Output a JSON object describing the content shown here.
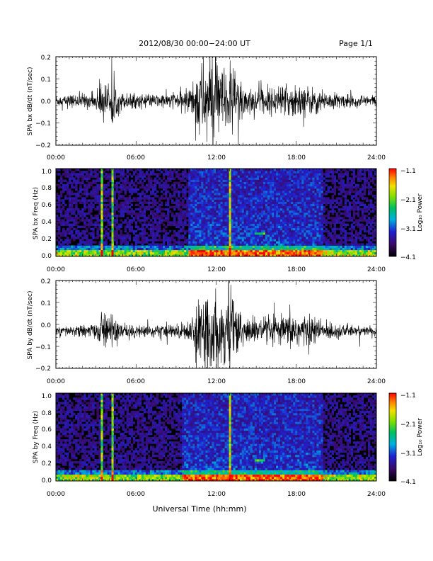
{
  "header": {
    "title": "2012/08/30  00:00−24:00 UT",
    "page": "Page 1/1"
  },
  "xlabel": "Universal Time (hh:mm)",
  "x_ticks": [
    "00:00",
    "06:00",
    "12:00",
    "18:00",
    "24:00"
  ],
  "colors": {
    "trace": "#000000",
    "spectrogram_background": "#000000",
    "colormap": [
      "#000000",
      "#3a0a6a",
      "#2020d0",
      "#00b0e0",
      "#00c060",
      "#80e000",
      "#f0e000",
      "#ff8000",
      "#ff0000"
    ]
  },
  "chart_data": [
    {
      "type": "line",
      "ylabel": "SPA bx dB/dt (nT/sec)",
      "xlim": [
        0,
        24
      ],
      "ylim": [
        -0.2,
        0.2
      ],
      "y_ticks": [
        "0.2",
        "0.1",
        "0.0",
        "−0.1",
        "−0.2"
      ],
      "x": [
        0,
        1,
        2,
        3,
        3.4,
        4,
        4.2,
        5,
        6,
        7,
        8,
        9,
        10,
        10.8,
        11,
        12,
        12.5,
        13,
        14,
        15,
        16,
        17,
        18,
        19,
        20,
        21,
        22,
        23,
        24
      ],
      "offset": [
        0.0,
        0.0,
        0.0,
        0.0,
        0.0,
        0.0,
        0.0,
        0.0,
        0.0,
        0.0,
        0.0,
        0.0,
        0.0,
        0.0,
        0.0,
        0.0,
        0.0,
        0.0,
        0.0,
        0.0,
        0.0,
        0.0,
        0.0,
        0.0,
        0.0,
        0.0,
        0.0,
        0.0,
        0.0
      ],
      "amplitude": [
        0.03,
        0.03,
        0.035,
        0.04,
        0.12,
        0.05,
        0.1,
        0.04,
        0.035,
        0.03,
        0.035,
        0.04,
        0.06,
        0.2,
        0.2,
        0.2,
        0.16,
        0.2,
        0.1,
        0.06,
        0.06,
        0.07,
        0.09,
        0.07,
        0.05,
        0.04,
        0.03,
        0.03,
        0.03
      ]
    },
    {
      "type": "heatmap",
      "ylabel": "SPA bx Freq (Hz)",
      "xlim": [
        0,
        24
      ],
      "ylim": [
        0,
        1.0
      ],
      "y_ticks": [
        "1.0",
        "0.8",
        "0.6",
        "0.4",
        "0.2",
        "0.0"
      ],
      "colorbar": {
        "label": "Log₁₀ Power",
        "range": [
          -4.1,
          -1.1
        ],
        "ticks": [
          "−1.1",
          "−2.1",
          "−3.1",
          "−4.1"
        ]
      },
      "bright_lines_hours": [
        3.4,
        4.2,
        13.0
      ],
      "low_freq_band_hz": 0.04,
      "enhanced_interval_hours": [
        10.0,
        20.0
      ],
      "spot": {
        "hour": 15.3,
        "freq_hz": 0.26
      }
    },
    {
      "type": "line",
      "ylabel": "SPA by dB/dt (nT/sec)",
      "xlim": [
        0,
        24
      ],
      "ylim": [
        -0.2,
        0.2
      ],
      "y_ticks": [
        "0.2",
        "0.1",
        "0.0",
        "−0.1",
        "−0.2"
      ],
      "x": [
        0,
        1,
        2,
        3,
        3.4,
        4,
        4.2,
        5,
        6,
        7,
        8,
        9,
        10,
        10.8,
        11,
        12,
        12.5,
        13,
        14,
        15,
        16,
        17,
        18,
        19,
        20,
        21,
        22,
        23,
        24
      ],
      "offset": [
        -0.03,
        -0.03,
        -0.03,
        -0.03,
        -0.03,
        -0.03,
        -0.03,
        -0.03,
        -0.03,
        -0.03,
        -0.03,
        -0.03,
        -0.03,
        -0.03,
        -0.03,
        -0.03,
        -0.03,
        -0.03,
        -0.03,
        -0.03,
        -0.03,
        -0.03,
        -0.03,
        -0.03,
        -0.03,
        -0.03,
        -0.03,
        -0.03,
        -0.03
      ],
      "amplitude": [
        0.02,
        0.025,
        0.03,
        0.035,
        0.11,
        0.05,
        0.1,
        0.04,
        0.03,
        0.03,
        0.03,
        0.035,
        0.05,
        0.15,
        0.2,
        0.18,
        0.15,
        0.2,
        0.09,
        0.06,
        0.06,
        0.07,
        0.1,
        0.07,
        0.05,
        0.04,
        0.03,
        0.025,
        0.02
      ]
    },
    {
      "type": "heatmap",
      "ylabel": "SPA by Freq (Hz)",
      "xlim": [
        0,
        24
      ],
      "ylim": [
        0,
        1.0
      ],
      "y_ticks": [
        "1.0",
        "0.8",
        "0.6",
        "0.4",
        "0.2",
        "0.0"
      ],
      "colorbar": {
        "label": "Log₁₀ Power",
        "range": [
          -4.1,
          -1.1
        ],
        "ticks": [
          "−1.1",
          "−2.1",
          "−3.1",
          "−4.1"
        ]
      },
      "bright_lines_hours": [
        3.4,
        4.2,
        13.0
      ],
      "low_freq_band_hz": 0.05,
      "enhanced_interval_hours": [
        9.5,
        20.0
      ],
      "spot": {
        "hour": 15.3,
        "freq_hz": 0.24
      }
    }
  ]
}
